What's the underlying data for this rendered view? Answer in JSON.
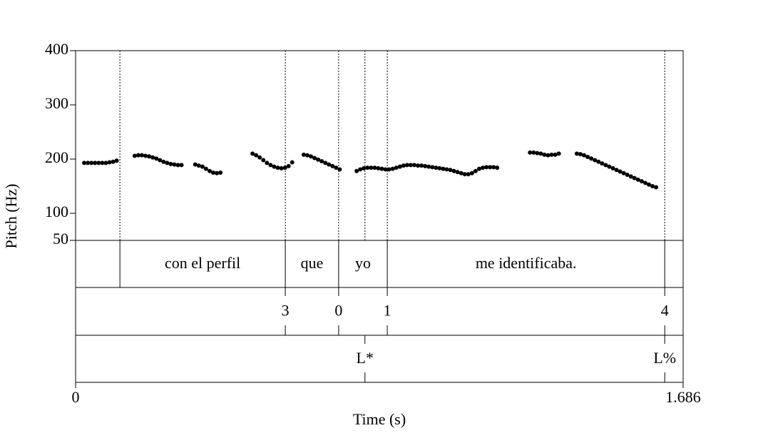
{
  "chart_data": {
    "type": "pitch",
    "xlabel": "Time (s)",
    "ylabel": "Pitch (Hz)",
    "xlim": [
      0,
      1.686
    ],
    "xticks": [
      0,
      1.686
    ],
    "ylim": [
      50,
      400
    ],
    "yticks": [
      50,
      100,
      200,
      300,
      400
    ],
    "color": "#000000",
    "segments": [
      {
        "x": [
          0.024,
          0.034,
          0.044,
          0.054,
          0.064,
          0.074,
          0.084,
          0.094,
          0.104,
          0.114
        ],
        "values": [
          193,
          193,
          193,
          193,
          193,
          193,
          193,
          194,
          195,
          197
        ]
      },
      {
        "x": [
          0.164,
          0.174,
          0.184,
          0.194,
          0.204,
          0.214,
          0.224,
          0.234,
          0.244,
          0.254,
          0.264,
          0.274,
          0.284,
          0.294
        ],
        "values": [
          206,
          207,
          207,
          206,
          205,
          203,
          201,
          198,
          195,
          193,
          191,
          190,
          189,
          189
        ]
      },
      {
        "x": [
          0.332,
          0.342,
          0.352,
          0.362,
          0.372,
          0.382,
          0.392,
          0.402
        ],
        "values": [
          190,
          188,
          186,
          182,
          178,
          175,
          174,
          175
        ]
      },
      {
        "x": [
          0.491,
          0.501,
          0.511,
          0.521,
          0.531,
          0.541,
          0.551,
          0.561,
          0.571,
          0.581,
          0.591,
          0.601
        ],
        "values": [
          210,
          207,
          203,
          198,
          193,
          189,
          186,
          184,
          183,
          184,
          187,
          194
        ]
      },
      {
        "x": [
          0.633,
          0.643,
          0.653,
          0.663,
          0.673,
          0.683,
          0.693,
          0.703,
          0.713,
          0.723,
          0.733
        ],
        "values": [
          208,
          207,
          205,
          202,
          199,
          196,
          193,
          190,
          187,
          184,
          181
        ]
      },
      {
        "x": [
          0.78,
          0.79,
          0.8,
          0.81,
          0.82,
          0.83,
          0.84,
          0.85,
          0.86,
          0.87,
          0.88,
          0.89,
          0.9,
          0.91,
          0.92,
          0.93,
          0.94,
          0.95,
          0.96,
          0.97,
          0.98,
          0.99,
          1.0,
          1.01,
          1.02,
          1.03,
          1.04,
          1.05,
          1.06,
          1.07,
          1.08,
          1.09,
          1.1,
          1.11,
          1.12,
          1.13,
          1.14,
          1.15,
          1.16,
          1.17
        ],
        "values": [
          178,
          181,
          183,
          184,
          184,
          184,
          183,
          182,
          181,
          181,
          182,
          184,
          186,
          188,
          189,
          189,
          189,
          188,
          188,
          187,
          186,
          185,
          184,
          183,
          182,
          181,
          180,
          178,
          176,
          174,
          172,
          172,
          174,
          178,
          182,
          184,
          185,
          185,
          185,
          184
        ]
      },
      {
        "x": [
          1.261,
          1.271,
          1.281,
          1.291,
          1.301,
          1.311,
          1.321,
          1.331,
          1.341
        ],
        "values": [
          212,
          212,
          211,
          210,
          208,
          207,
          208,
          208,
          210
        ]
      },
      {
        "x": [
          1.391,
          1.401,
          1.411,
          1.421,
          1.431,
          1.441,
          1.451,
          1.461,
          1.471,
          1.481,
          1.491,
          1.501,
          1.511,
          1.521,
          1.531,
          1.541,
          1.551,
          1.561,
          1.571,
          1.581,
          1.591,
          1.601,
          1.611
        ],
        "values": [
          210,
          209,
          207,
          204,
          201,
          198,
          195,
          192,
          189,
          186,
          183,
          180,
          177,
          174,
          171,
          168,
          165,
          162,
          159,
          156,
          153,
          150,
          148
        ]
      }
    ],
    "tiers": [
      {
        "kind": "interval",
        "intervals": [
          {
            "start": 0.123,
            "end": 0.582,
            "text": "con el perfil"
          },
          {
            "start": 0.582,
            "end": 0.73,
            "text": "que"
          },
          {
            "start": 0.73,
            "end": 0.865,
            "text": "yo"
          },
          {
            "start": 0.865,
            "end": 1.635,
            "text": "me identificaba."
          }
        ]
      },
      {
        "kind": "point",
        "points": [
          {
            "time": 0.582,
            "text": "3"
          },
          {
            "time": 0.73,
            "text": "0"
          },
          {
            "time": 0.865,
            "text": "1"
          },
          {
            "time": 1.635,
            "text": "4"
          }
        ]
      },
      {
        "kind": "point",
        "points": [
          {
            "time": 0.803,
            "text": "L*"
          },
          {
            "time": 1.635,
            "text": "L%"
          }
        ]
      }
    ]
  }
}
